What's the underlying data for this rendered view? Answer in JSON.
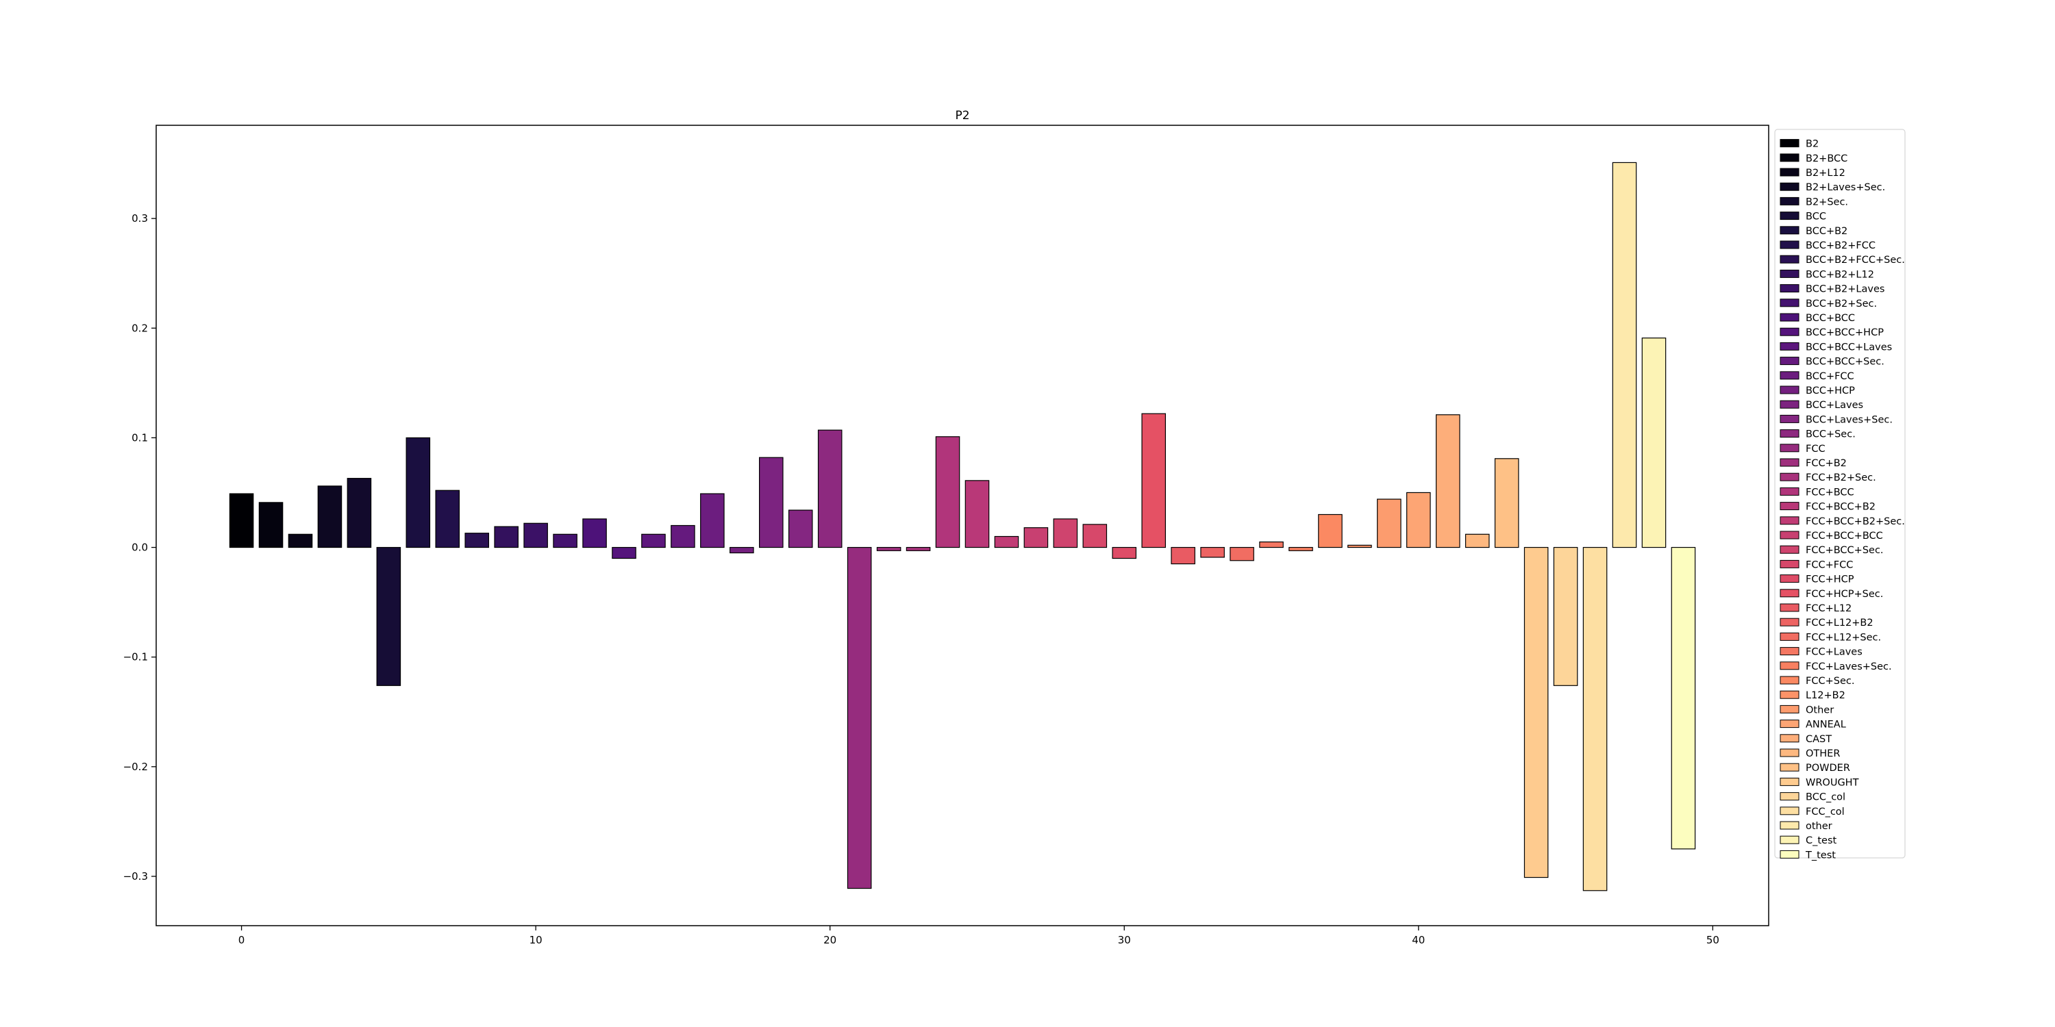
{
  "chart_data": {
    "type": "bar",
    "title": "P2",
    "xlabel": "",
    "ylabel": "",
    "xlim": [
      -2.9,
      51.9
    ],
    "ylim": [
      -0.345,
      0.385
    ],
    "xticks": [
      0,
      10,
      20,
      30,
      40,
      50
    ],
    "xtick_labels": [
      "0",
      "10",
      "20",
      "30",
      "40",
      "50"
    ],
    "yticks": [
      -0.3,
      -0.2,
      -0.1,
      0.0,
      0.1,
      0.2,
      0.3
    ],
    "ytick_labels": [
      "−0.3",
      "−0.2",
      "−0.1",
      "0.0",
      "0.1",
      "0.2",
      "0.3"
    ],
    "grid": false,
    "legend_position": "outside-right",
    "colormap": "magma",
    "categories": [
      "B2",
      "B2+BCC",
      "B2+L12",
      "B2+Laves+Sec.",
      "B2+Sec.",
      "BCC",
      "BCC+B2",
      "BCC+B2+FCC",
      "BCC+B2+FCC+Sec.",
      "BCC+B2+L12",
      "BCC+B2+Laves",
      "BCC+B2+Sec.",
      "BCC+BCC",
      "BCC+BCC+HCP",
      "BCC+BCC+Laves",
      "BCC+BCC+Sec.",
      "BCC+FCC",
      "BCC+HCP",
      "BCC+Laves",
      "BCC+Laves+Sec.",
      "BCC+Sec.",
      "FCC",
      "FCC+B2",
      "FCC+B2+Sec.",
      "FCC+BCC",
      "FCC+BCC+B2",
      "FCC+BCC+B2+Sec.",
      "FCC+BCC+BCC",
      "FCC+BCC+Sec.",
      "FCC+FCC",
      "FCC+HCP",
      "FCC+HCP+Sec.",
      "FCC+L12",
      "FCC+L12+B2",
      "FCC+L12+Sec.",
      "FCC+Laves",
      "FCC+Laves+Sec.",
      "FCC+Sec.",
      "L12+B2",
      "Other",
      "ANNEAL",
      "CAST",
      "OTHER",
      "POWDER",
      "WROUGHT",
      "BCC_col",
      "FCC_col",
      "other",
      "C_test",
      "T_test"
    ],
    "x": [
      0,
      1,
      2,
      3,
      4,
      5,
      6,
      7,
      8,
      9,
      10,
      11,
      12,
      13,
      14,
      15,
      16,
      17,
      18,
      19,
      20,
      21,
      22,
      23,
      24,
      25,
      26,
      27,
      28,
      29,
      30,
      31,
      32,
      33,
      34,
      35,
      36,
      37,
      38,
      39,
      40,
      41,
      42,
      43,
      44,
      45,
      46,
      47,
      48,
      49
    ],
    "values": [
      0.049,
      0.041,
      0.012,
      0.056,
      0.063,
      -0.126,
      0.1,
      0.052,
      0.013,
      0.019,
      0.022,
      0.012,
      0.026,
      -0.01,
      0.012,
      0.02,
      0.049,
      -0.005,
      0.082,
      0.034,
      0.107,
      -0.311,
      -0.003,
      -0.003,
      0.101,
      0.061,
      0.01,
      0.018,
      0.026,
      0.021,
      -0.01,
      0.122,
      -0.015,
      -0.009,
      -0.012,
      0.005,
      -0.003,
      0.03,
      0.002,
      0.044,
      0.05,
      0.121,
      0.012,
      0.081,
      -0.301,
      -0.126,
      -0.313,
      0.351,
      0.191,
      -0.275
    ]
  }
}
